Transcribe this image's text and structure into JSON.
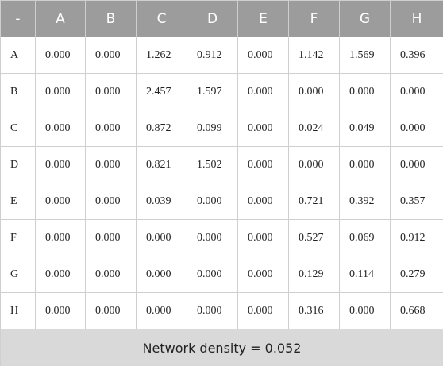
{
  "table": {
    "header": [
      "-",
      "A",
      "B",
      "C",
      "D",
      "E",
      "F",
      "G",
      "H"
    ],
    "rows": [
      [
        "A",
        "0.000",
        "0.000",
        "1.262",
        "0.912",
        "0.000",
        "1.142",
        "1.569",
        "0.396"
      ],
      [
        "B",
        "0.000",
        "0.000",
        "2.457",
        "1.597",
        "0.000",
        "0.000",
        "0.000",
        "0.000"
      ],
      [
        "C",
        "0.000",
        "0.000",
        "0.872",
        "0.099",
        "0.000",
        "0.024",
        "0.049",
        "0.000"
      ],
      [
        "D",
        "0.000",
        "0.000",
        "0.821",
        "1.502",
        "0.000",
        "0.000",
        "0.000",
        "0.000"
      ],
      [
        "E",
        "0.000",
        "0.000",
        "0.039",
        "0.000",
        "0.000",
        "0.721",
        "0.392",
        "0.357"
      ],
      [
        "F",
        "0.000",
        "0.000",
        "0.000",
        "0.000",
        "0.000",
        "0.527",
        "0.069",
        "0.912"
      ],
      [
        "G",
        "0.000",
        "0.000",
        "0.000",
        "0.000",
        "0.000",
        "0.129",
        "0.114",
        "0.279"
      ],
      [
        "H",
        "0.000",
        "0.000",
        "0.000",
        "0.000",
        "0.000",
        "0.316",
        "0.000",
        "0.668"
      ]
    ],
    "footer": "Network density = 0.052"
  }
}
